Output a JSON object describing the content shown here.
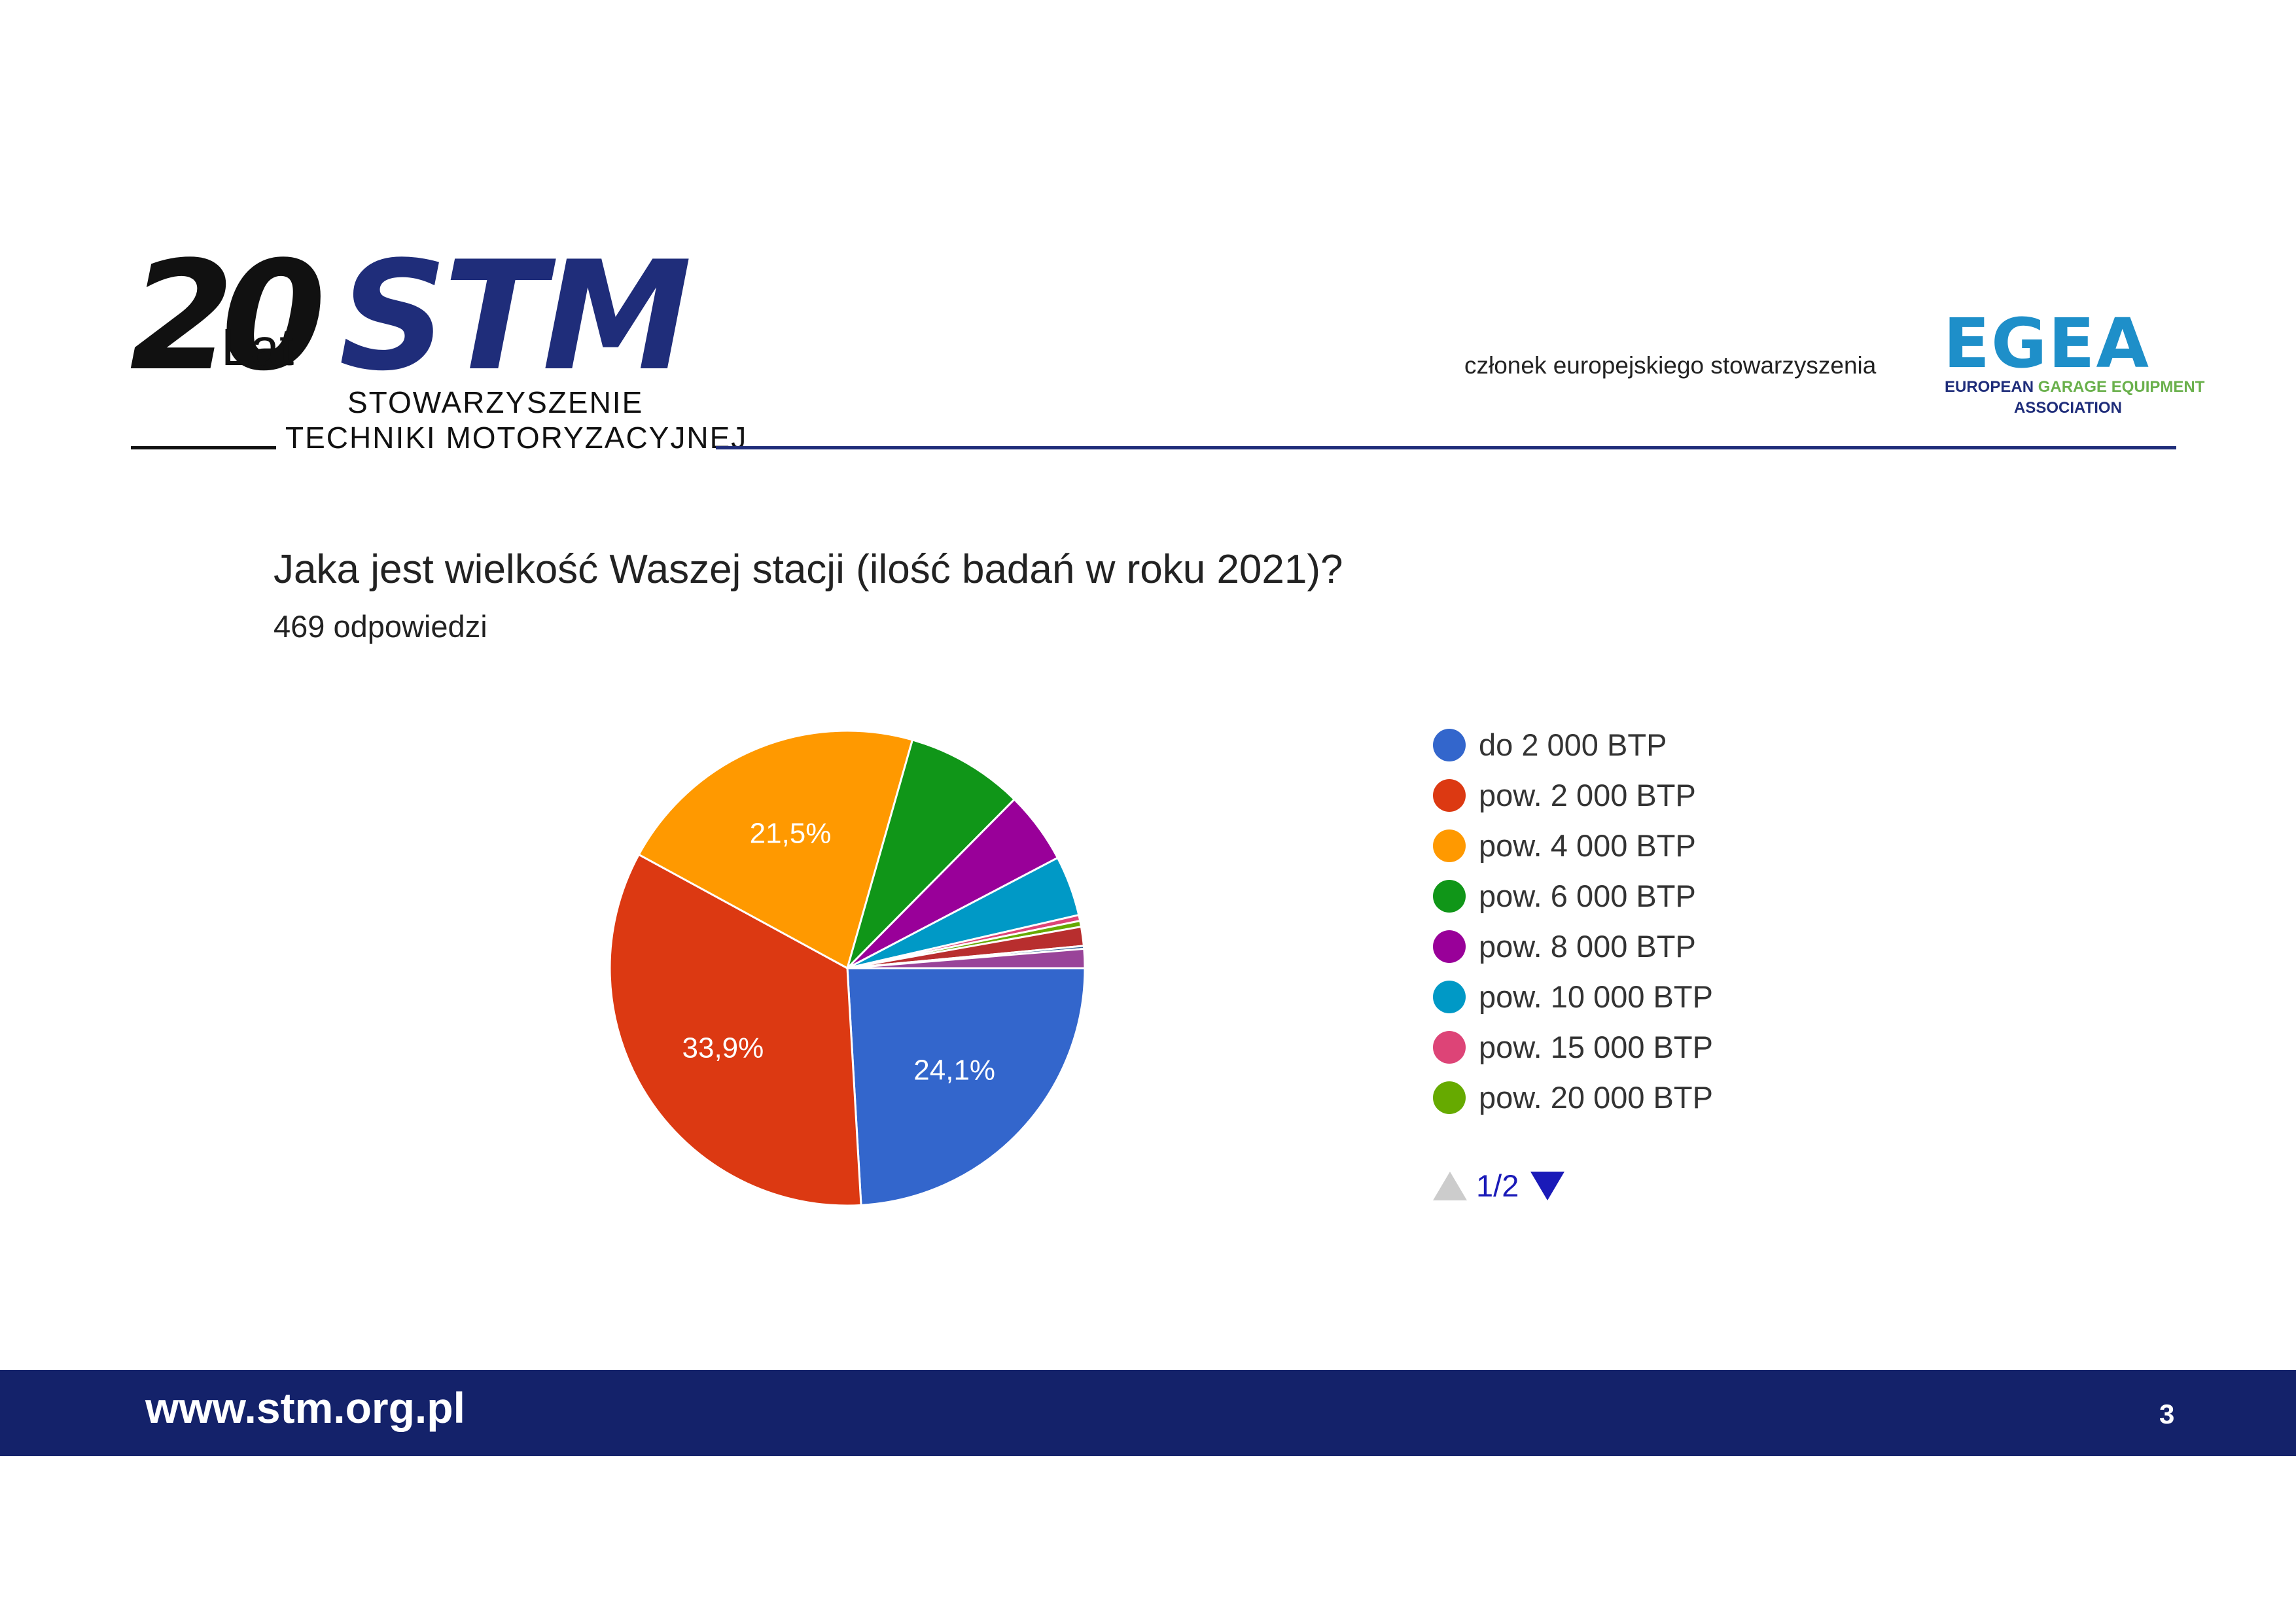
{
  "header": {
    "logo_stm": {
      "twenty": "20",
      "lat": "Lat",
      "stm": "STM",
      "org_line1": "STOWARZYSZENIE",
      "org_line2": "TECHNIKI MOTORYZACYJNEJ"
    },
    "egea_member_text": "członek europejskiego stowarzyszenia",
    "logo_egea": {
      "name": "EGEA",
      "sub_part1": "EUROPEAN ",
      "sub_part2": "GARAGE EQUIPMENT",
      "sub_line2": "ASSOCIATION"
    }
  },
  "question": {
    "title": "Jaka jest wielkość Waszej stacji (ilość badań w roku 2021)?",
    "responses": "469 odpowiedzi"
  },
  "chart_data": {
    "type": "pie",
    "categories": [
      "do 2 000 BTP",
      "pow. 2 000 BTP",
      "pow. 4 000 BTP",
      "pow. 6 000 BTP",
      "pow. 8 000 BTP",
      "pow. 10 000 BTP",
      "pow. 15 000 BTP",
      "pow. 20 000 BTP",
      "",
      "",
      ""
    ],
    "values": [
      24.1,
      33.9,
      21.5,
      8.0,
      4.9,
      4.1,
      0.4,
      0.4,
      1.3,
      0.2,
      1.3
    ],
    "data_labels": [
      "24,1%",
      "33,9%",
      "21,5%",
      "",
      "",
      "",
      "",
      "",
      "",
      "",
      ""
    ],
    "colors": [
      "#3366cc",
      "#dc3912",
      "#ff9900",
      "#109618",
      "#990099",
      "#0099c6",
      "#dd4477",
      "#66aa00",
      "#b82e2e",
      "#316395",
      "#994499"
    ],
    "legend_page": "1/2",
    "legend_placement": "right"
  },
  "footer": {
    "url": "www.stm.org.pl",
    "page_number": "3"
  }
}
